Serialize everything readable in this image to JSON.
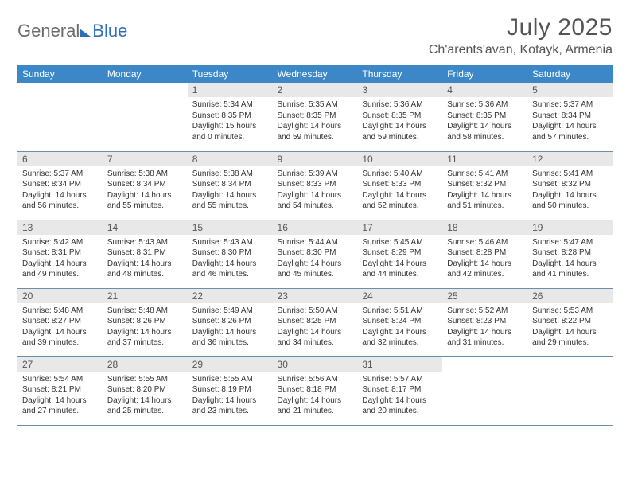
{
  "brand": {
    "part1": "General",
    "part2": "Blue"
  },
  "title": {
    "month": "July 2025",
    "location": "Ch'arents'avan, Kotayk, Armenia"
  },
  "colors": {
    "header_bg": "#3b87c8",
    "header_fg": "#ffffff",
    "daynum_bg": "#e8e8e8",
    "border": "#6a8fad",
    "brand_gray": "#6c6c6c",
    "brand_blue": "#2d6fb6"
  },
  "weekdays": [
    "Sunday",
    "Monday",
    "Tuesday",
    "Wednesday",
    "Thursday",
    "Friday",
    "Saturday"
  ],
  "weeks": [
    [
      null,
      null,
      {
        "n": "1",
        "sr": "5:34 AM",
        "ss": "8:35 PM",
        "dl": "15 hours and 0 minutes."
      },
      {
        "n": "2",
        "sr": "5:35 AM",
        "ss": "8:35 PM",
        "dl": "14 hours and 59 minutes."
      },
      {
        "n": "3",
        "sr": "5:36 AM",
        "ss": "8:35 PM",
        "dl": "14 hours and 59 minutes."
      },
      {
        "n": "4",
        "sr": "5:36 AM",
        "ss": "8:35 PM",
        "dl": "14 hours and 58 minutes."
      },
      {
        "n": "5",
        "sr": "5:37 AM",
        "ss": "8:34 PM",
        "dl": "14 hours and 57 minutes."
      }
    ],
    [
      {
        "n": "6",
        "sr": "5:37 AM",
        "ss": "8:34 PM",
        "dl": "14 hours and 56 minutes."
      },
      {
        "n": "7",
        "sr": "5:38 AM",
        "ss": "8:34 PM",
        "dl": "14 hours and 55 minutes."
      },
      {
        "n": "8",
        "sr": "5:38 AM",
        "ss": "8:34 PM",
        "dl": "14 hours and 55 minutes."
      },
      {
        "n": "9",
        "sr": "5:39 AM",
        "ss": "8:33 PM",
        "dl": "14 hours and 54 minutes."
      },
      {
        "n": "10",
        "sr": "5:40 AM",
        "ss": "8:33 PM",
        "dl": "14 hours and 52 minutes."
      },
      {
        "n": "11",
        "sr": "5:41 AM",
        "ss": "8:32 PM",
        "dl": "14 hours and 51 minutes."
      },
      {
        "n": "12",
        "sr": "5:41 AM",
        "ss": "8:32 PM",
        "dl": "14 hours and 50 minutes."
      }
    ],
    [
      {
        "n": "13",
        "sr": "5:42 AM",
        "ss": "8:31 PM",
        "dl": "14 hours and 49 minutes."
      },
      {
        "n": "14",
        "sr": "5:43 AM",
        "ss": "8:31 PM",
        "dl": "14 hours and 48 minutes."
      },
      {
        "n": "15",
        "sr": "5:43 AM",
        "ss": "8:30 PM",
        "dl": "14 hours and 46 minutes."
      },
      {
        "n": "16",
        "sr": "5:44 AM",
        "ss": "8:30 PM",
        "dl": "14 hours and 45 minutes."
      },
      {
        "n": "17",
        "sr": "5:45 AM",
        "ss": "8:29 PM",
        "dl": "14 hours and 44 minutes."
      },
      {
        "n": "18",
        "sr": "5:46 AM",
        "ss": "8:28 PM",
        "dl": "14 hours and 42 minutes."
      },
      {
        "n": "19",
        "sr": "5:47 AM",
        "ss": "8:28 PM",
        "dl": "14 hours and 41 minutes."
      }
    ],
    [
      {
        "n": "20",
        "sr": "5:48 AM",
        "ss": "8:27 PM",
        "dl": "14 hours and 39 minutes."
      },
      {
        "n": "21",
        "sr": "5:48 AM",
        "ss": "8:26 PM",
        "dl": "14 hours and 37 minutes."
      },
      {
        "n": "22",
        "sr": "5:49 AM",
        "ss": "8:26 PM",
        "dl": "14 hours and 36 minutes."
      },
      {
        "n": "23",
        "sr": "5:50 AM",
        "ss": "8:25 PM",
        "dl": "14 hours and 34 minutes."
      },
      {
        "n": "24",
        "sr": "5:51 AM",
        "ss": "8:24 PM",
        "dl": "14 hours and 32 minutes."
      },
      {
        "n": "25",
        "sr": "5:52 AM",
        "ss": "8:23 PM",
        "dl": "14 hours and 31 minutes."
      },
      {
        "n": "26",
        "sr": "5:53 AM",
        "ss": "8:22 PM",
        "dl": "14 hours and 29 minutes."
      }
    ],
    [
      {
        "n": "27",
        "sr": "5:54 AM",
        "ss": "8:21 PM",
        "dl": "14 hours and 27 minutes."
      },
      {
        "n": "28",
        "sr": "5:55 AM",
        "ss": "8:20 PM",
        "dl": "14 hours and 25 minutes."
      },
      {
        "n": "29",
        "sr": "5:55 AM",
        "ss": "8:19 PM",
        "dl": "14 hours and 23 minutes."
      },
      {
        "n": "30",
        "sr": "5:56 AM",
        "ss": "8:18 PM",
        "dl": "14 hours and 21 minutes."
      },
      {
        "n": "31",
        "sr": "5:57 AM",
        "ss": "8:17 PM",
        "dl": "14 hours and 20 minutes."
      },
      null,
      null
    ]
  ],
  "labels": {
    "sunrise": "Sunrise: ",
    "sunset": "Sunset: ",
    "daylight": "Daylight: "
  }
}
